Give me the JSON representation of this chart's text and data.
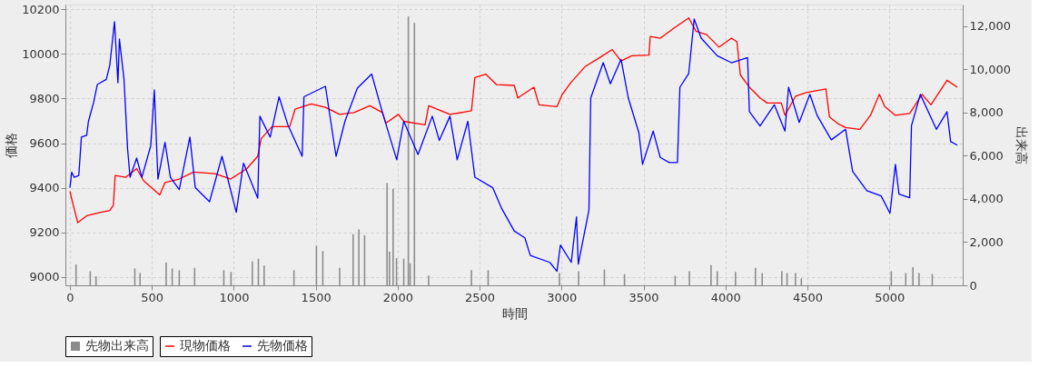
{
  "chart_data": {
    "type": "line",
    "xlabel": "時間",
    "ylabel": "価格",
    "y2label": "出来高",
    "xlim": [
      0,
      5420
    ],
    "xticks": [
      0,
      500,
      1000,
      1500,
      2000,
      2500,
      3000,
      3500,
      4000,
      4500,
      5000
    ],
    "ylim": [
      8962,
      10222
    ],
    "yticks": [
      9000,
      9200,
      9400,
      9600,
      9800,
      10000,
      10200
    ],
    "y2lim": [
      0,
      13000
    ],
    "y2ticks": [
      0,
      {
        "value": 2000,
        "label": "2,000"
      },
      {
        "value": 4000,
        "label": "4,000"
      },
      {
        "value": 6000,
        "label": "6,000"
      },
      {
        "value": 8000,
        "label": "8,000"
      },
      {
        "value": 10000,
        "label": "10,000"
      },
      {
        "value": 12000,
        "label": "12,000"
      }
    ],
    "grid": true,
    "legend": "bottom",
    "series": [
      {
        "name": "先物出来高",
        "type": "bar",
        "axis": "y2",
        "color": "#8c8c8c",
        "x": [
          37,
          124,
          159,
          396,
          428,
          587,
          624,
          667,
          761,
          939,
          983,
          1113,
          1150,
          1185,
          1367,
          1504,
          1543,
          1646,
          1728,
          1763,
          1798,
          1935,
          1950,
          1972,
          1993,
          2037,
          2065,
          2076,
          2102,
          2189,
          2450,
          2552,
          2987,
          3104,
          3261,
          3384,
          3693,
          3780,
          3912,
          3950,
          4061,
          4183,
          4224,
          4344,
          4376,
          4427,
          4463,
          5012,
          5100,
          5144,
          5181,
          5262
        ],
        "values": [
          970,
          650,
          420,
          780,
          570,
          1050,
          780,
          700,
          810,
          700,
          620,
          1100,
          1230,
          910,
          700,
          1830,
          1590,
          810,
          2370,
          2590,
          2320,
          4730,
          1560,
          4470,
          1260,
          1230,
          12440,
          1020,
          12150,
          450,
          700,
          700,
          570,
          650,
          730,
          520,
          440,
          650,
          940,
          650,
          620,
          810,
          570,
          650,
          570,
          570,
          320,
          650,
          570,
          840,
          570,
          520
        ]
      },
      {
        "name": "現物価格",
        "color": "#ff0000",
        "x": [
          0,
          15,
          48,
          102,
          189,
          243,
          265,
          276,
          341,
          407,
          450,
          548,
          580,
          667,
          754,
          885,
          982,
          1080,
          1146,
          1167,
          1233,
          1341,
          1374,
          1472,
          1559,
          1646,
          1733,
          1830,
          1907,
          1928,
          2004,
          2037,
          2167,
          2189,
          2319,
          2450,
          2471,
          2537,
          2602,
          2711,
          2733,
          2831,
          2863,
          2972,
          3004,
          3059,
          3146,
          3233,
          3309,
          3363,
          3428,
          3533,
          3541,
          3602,
          3689,
          3776,
          3820,
          3885,
          3961,
          4037,
          4070,
          4091,
          4146,
          4211,
          4254,
          4341,
          4363,
          4428,
          4493,
          4613,
          4635,
          4689,
          4733,
          4820,
          4885,
          4939,
          4972,
          5037,
          5124,
          5200,
          5254,
          5352,
          5415
        ],
        "values": [
          9384,
          9337,
          9243,
          9274,
          9290,
          9298,
          9321,
          9455,
          9447,
          9486,
          9431,
          9368,
          9423,
          9439,
          9470,
          9463,
          9439,
          9486,
          9541,
          9620,
          9674,
          9674,
          9753,
          9776,
          9761,
          9729,
          9737,
          9768,
          9737,
          9690,
          9729,
          9698,
          9682,
          9768,
          9729,
          9745,
          9894,
          9910,
          9863,
          9859,
          9803,
          9851,
          9772,
          9764,
          9819,
          9874,
          9945,
          9984,
          10020,
          9969,
          9992,
          9995,
          10079,
          10071,
          10118,
          10162,
          10102,
          10087,
          10031,
          10071,
          10055,
          9906,
          9851,
          9803,
          9780,
          9780,
          9725,
          9811,
          9827,
          9843,
          9717,
          9686,
          9670,
          9662,
          9725,
          9819,
          9764,
          9725,
          9733,
          9819,
          9772,
          9882,
          9851
        ]
      },
      {
        "name": "先物価格",
        "color": "#0000ff",
        "x": [
          0,
          11,
          26,
          54,
          70,
          102,
          113,
          145,
          167,
          222,
          243,
          272,
          293,
          302,
          330,
          352,
          367,
          407,
          439,
          493,
          515,
          537,
          580,
          613,
          667,
          732,
          765,
          852,
          928,
          1015,
          1059,
          1146,
          1159,
          1222,
          1276,
          1330,
          1417,
          1428,
          1559,
          1624,
          1678,
          1754,
          1841,
          1907,
          1994,
          2037,
          2124,
          2211,
          2254,
          2319,
          2363,
          2428,
          2471,
          2580,
          2635,
          2711,
          2776,
          2809,
          2928,
          2972,
          2993,
          3059,
          3091,
          3102,
          3167,
          3178,
          3254,
          3298,
          3363,
          3407,
          3472,
          3494,
          3559,
          3602,
          3657,
          3707,
          3722,
          3776,
          3809,
          3852,
          3950,
          4037,
          4135,
          4146,
          4211,
          4298,
          4363,
          4385,
          4450,
          4515,
          4559,
          4646,
          4733,
          4776,
          4863,
          4950,
          5004,
          5037,
          5059,
          5124,
          5135,
          5189,
          5287,
          5352,
          5374,
          5415
        ],
        "values": [
          9400,
          9470,
          9447,
          9455,
          9627,
          9635,
          9698,
          9784,
          9863,
          9886,
          9949,
          10145,
          9871,
          10067,
          9886,
          9572,
          9447,
          9533,
          9447,
          9588,
          9839,
          9439,
          9604,
          9447,
          9392,
          9627,
          9400,
          9337,
          9541,
          9290,
          9510,
          9353,
          9721,
          9627,
          9808,
          9682,
          9541,
          9808,
          9855,
          9541,
          9698,
          9847,
          9910,
          9737,
          9525,
          9698,
          9549,
          9721,
          9612,
          9721,
          9525,
          9698,
          9447,
          9400,
          9306,
          9206,
          9175,
          9096,
          9065,
          9025,
          9143,
          9065,
          9269,
          9057,
          9300,
          9803,
          9961,
          9866,
          9976,
          9803,
          9646,
          9505,
          9654,
          9536,
          9513,
          9513,
          9851,
          9913,
          10157,
          10071,
          9992,
          9961,
          9984,
          9741,
          9677,
          9772,
          9654,
          9851,
          9693,
          9819,
          9725,
          9615,
          9662,
          9473,
          9387,
          9363,
          9285,
          9505,
          9371,
          9355,
          9678,
          9819,
          9662,
          9741,
          9607,
          9591
        ]
      }
    ]
  }
}
